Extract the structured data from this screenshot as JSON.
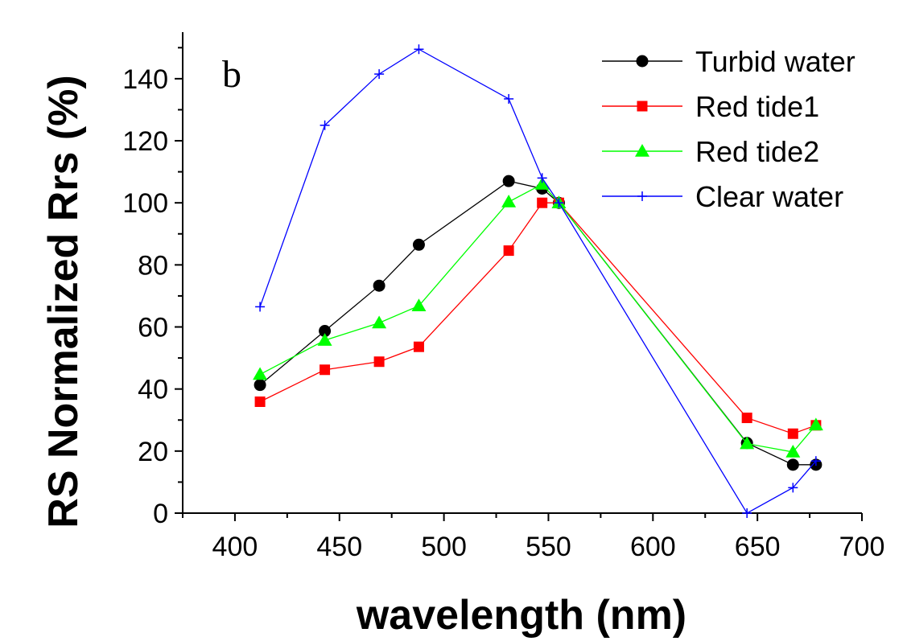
{
  "chart_data": {
    "type": "line",
    "panel_label": "b",
    "xlabel": "wavelength (nm)",
    "ylabel": "RS Normalized Rrs (%)",
    "xlim": [
      375,
      700
    ],
    "ylim": [
      0,
      155
    ],
    "x_ticks": [
      400,
      450,
      500,
      550,
      600,
      650,
      700
    ],
    "y_ticks": [
      0,
      20,
      40,
      60,
      80,
      100,
      120,
      140
    ],
    "grid": false,
    "legend_position": "top-right",
    "series": [
      {
        "name": "Turbid water",
        "color": "#000000",
        "marker": "circle",
        "x": [
          412,
          443,
          469,
          488,
          531,
          547,
          555,
          645,
          667,
          678
        ],
        "y": [
          41.3,
          58.7,
          73.3,
          86.5,
          107.0,
          104.6,
          100.0,
          22.6,
          15.6,
          15.6
        ]
      },
      {
        "name": "Red tide1",
        "color": "#ff0000",
        "marker": "square",
        "x": [
          412,
          443,
          469,
          488,
          531,
          547,
          555,
          645,
          667,
          678
        ],
        "y": [
          35.9,
          46.2,
          48.8,
          53.6,
          84.6,
          100.0,
          100.0,
          30.7,
          25.6,
          28.3
        ]
      },
      {
        "name": "Red tide2",
        "color": "#00ff00",
        "marker": "triangle",
        "x": [
          412,
          443,
          469,
          488,
          531,
          547,
          555,
          645,
          667,
          678
        ],
        "y": [
          44.7,
          55.7,
          61.3,
          66.8,
          100.3,
          106.0,
          100.0,
          22.4,
          19.7,
          28.4
        ]
      },
      {
        "name": "Clear water",
        "color": "#0000ff",
        "marker": "plus",
        "x": [
          412,
          443,
          469,
          488,
          531,
          547,
          555,
          645,
          667,
          678
        ],
        "y": [
          66.5,
          125.0,
          141.5,
          149.5,
          133.5,
          108.0,
          100.0,
          0.0,
          8.2,
          16.8
        ]
      }
    ]
  }
}
